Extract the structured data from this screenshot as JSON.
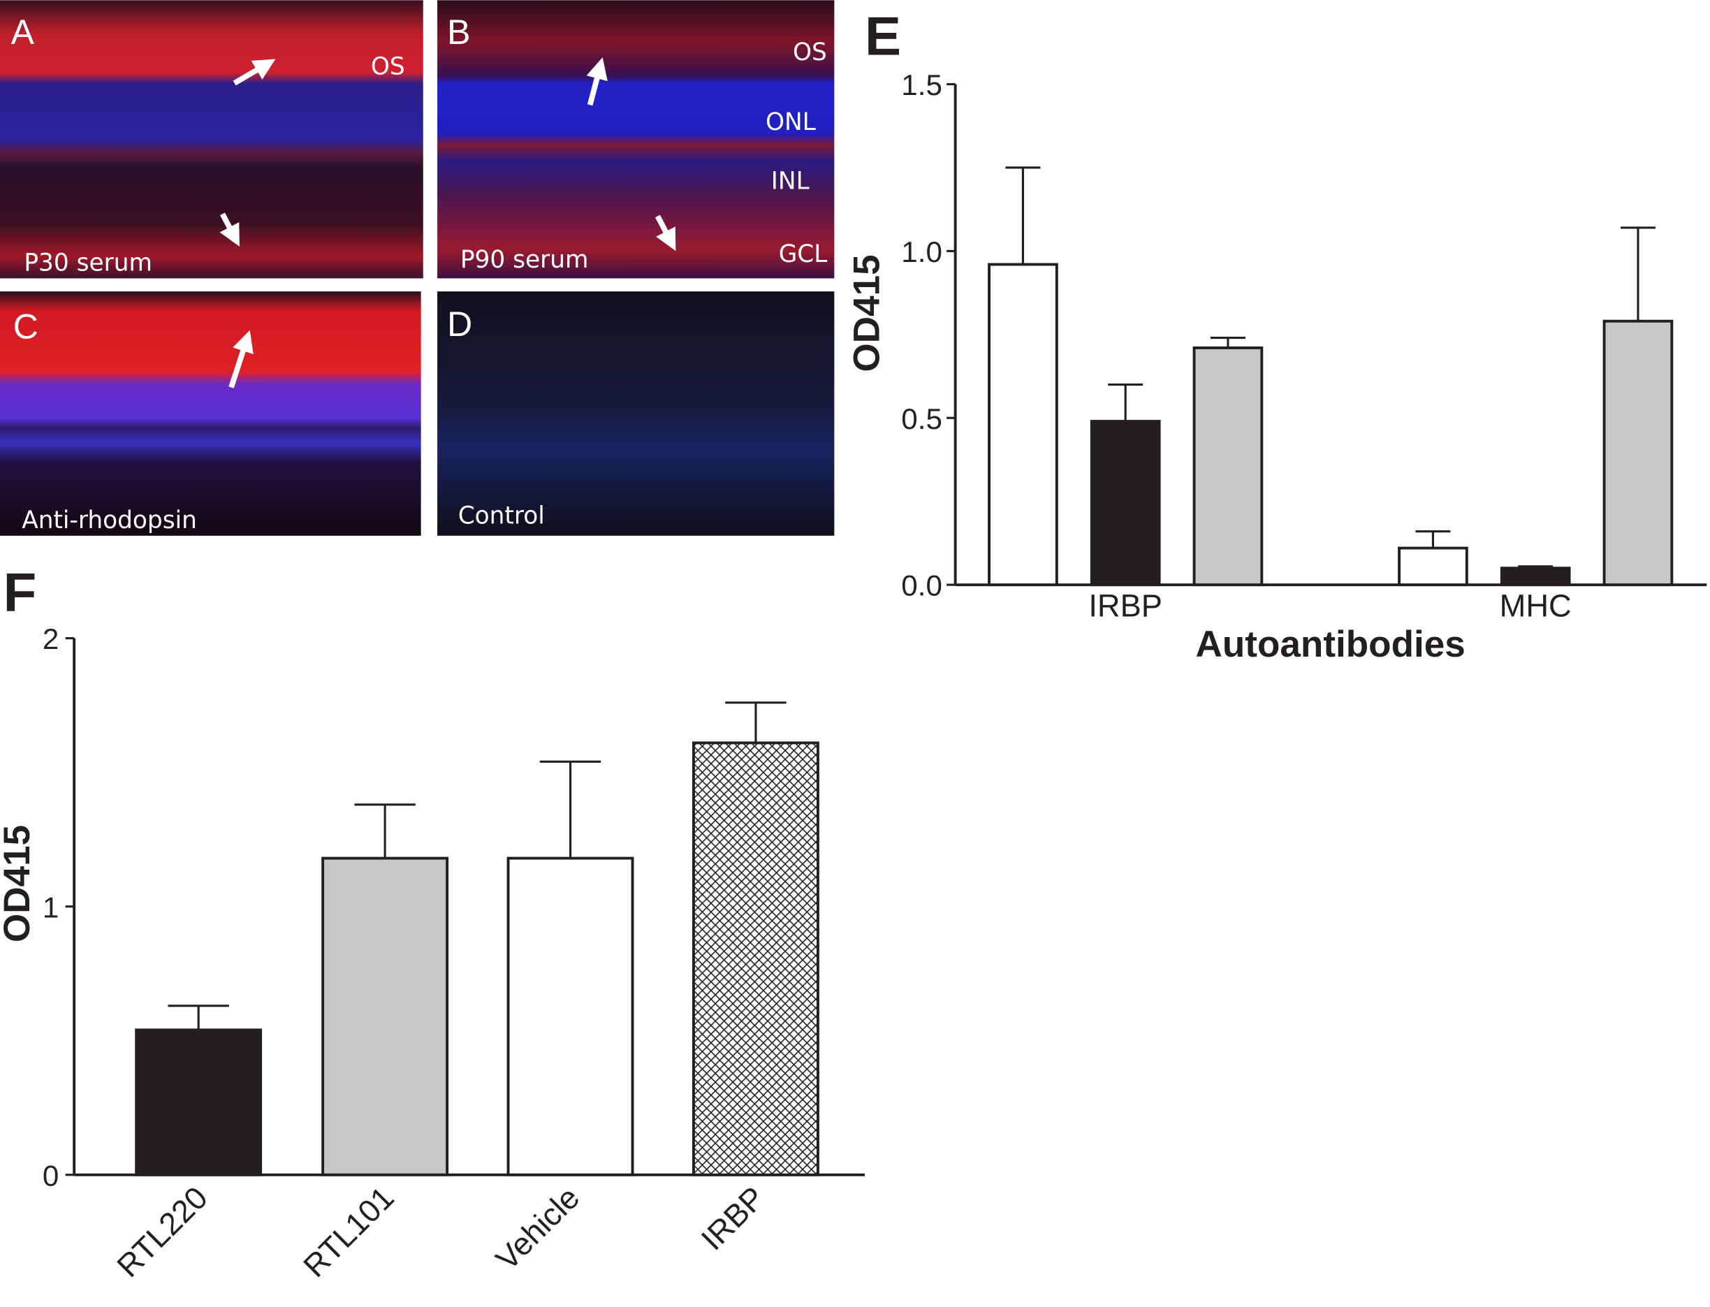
{
  "panels": {
    "A": {
      "letter": "A",
      "caption": "P30 serum",
      "layers": [
        "OS"
      ]
    },
    "B": {
      "letter": "B",
      "caption": "P90 serum",
      "layers": [
        "OS",
        "ONL",
        "INL",
        "GCL"
      ]
    },
    "C": {
      "letter": "C",
      "caption": "Anti-rhodopsin"
    },
    "D": {
      "letter": "D",
      "caption": "Control"
    }
  },
  "chart_data": [
    {
      "panel": "E",
      "type": "bar",
      "xlabel": "Autoantibodies",
      "ylabel": "OD415",
      "ylim": [
        0,
        1.5
      ],
      "yticks": [
        "0.0",
        "0.5",
        "1.0",
        "1.5"
      ],
      "categories": [
        "IRBP",
        "MHC"
      ],
      "series": [
        {
          "color": "#ffffff",
          "values": [
            0.96,
            0.11
          ],
          "error_upper": [
            1.25,
            0.16
          ]
        },
        {
          "color": "#231f20",
          "values": [
            0.49,
            0.05
          ],
          "error_upper": [
            0.6,
            0.055
          ]
        },
        {
          "color": "#c6c7c9",
          "values": [
            0.71,
            0.79
          ],
          "error_upper": [
            0.74,
            1.07
          ]
        }
      ],
      "grid": false
    },
    {
      "panel": "F",
      "type": "bar",
      "ylabel": "OD415",
      "ylim": [
        0,
        2
      ],
      "yticks": [
        "0",
        "1",
        "2"
      ],
      "categories": [
        "RTL220",
        "RTL101",
        "Vehicle",
        "IRBP"
      ],
      "values": [
        0.54,
        1.18,
        1.18,
        1.61
      ],
      "error_upper": [
        0.63,
        1.38,
        1.54,
        1.76
      ],
      "fills": [
        "#231f20",
        "#c6c7c9",
        "#ffffff",
        "crosshatch"
      ],
      "grid": false
    }
  ]
}
